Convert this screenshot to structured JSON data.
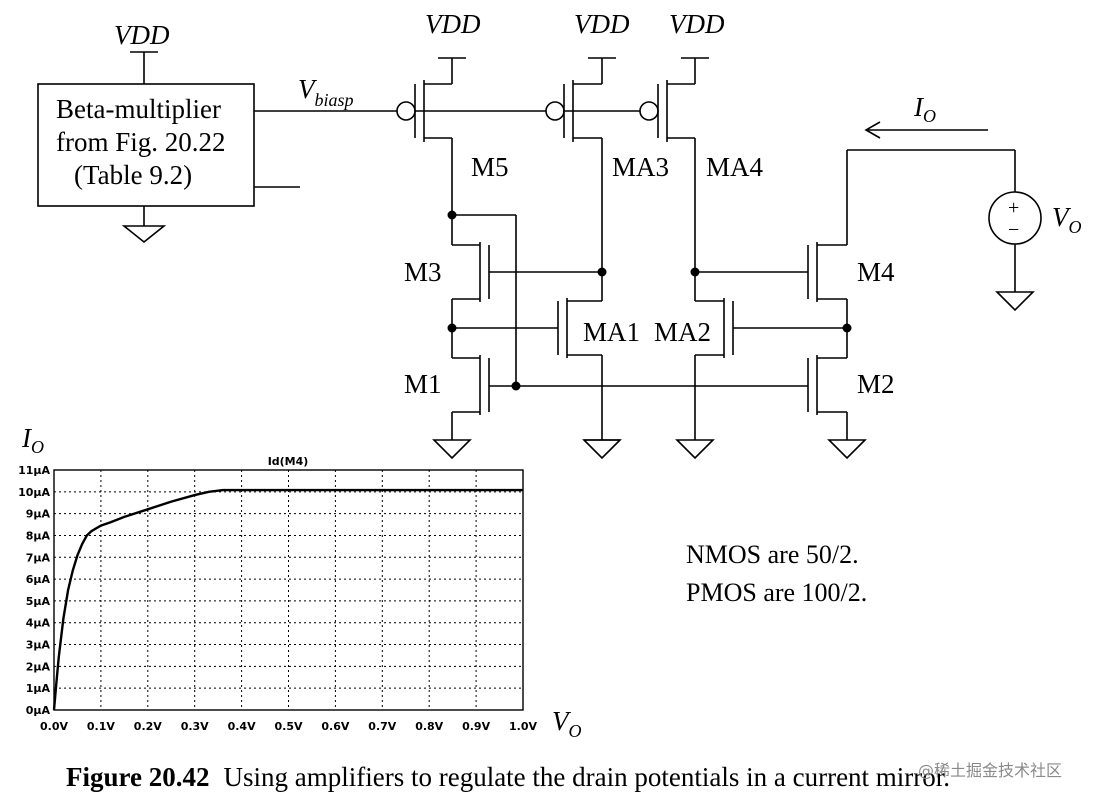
{
  "schematic": {
    "vdd": "VDD",
    "beta_multiplier": [
      "Beta-multiplier",
      "from Fig. 20.22",
      "(Table 9.2)"
    ],
    "vbiasp": {
      "main": "V",
      "sub": "biasp"
    },
    "transistors": {
      "m5": "M5",
      "ma3": "MA3",
      "ma4": "MA4",
      "m3": "M3",
      "m4": "M4",
      "ma1": "MA1",
      "ma2": "MA2",
      "m1": "M1",
      "m2": "M2"
    },
    "io": {
      "main": "I",
      "sub": "O"
    },
    "vo": {
      "main": "V",
      "sub": "O"
    },
    "source_plus": "+",
    "source_minus": "−"
  },
  "notes": {
    "nmos": "NMOS are 50/2.",
    "pmos": "PMOS are 100/2."
  },
  "caption": {
    "number": "Figure 20.42",
    "text": "Using amplifiers to regulate the drain potentials in a current mirror."
  },
  "watermark": "@稀土掘金技术社区",
  "chart_data": {
    "type": "line",
    "title": "Id(M4)",
    "ylabel": {
      "main": "I",
      "sub": "O"
    },
    "xlabel": {
      "main": "V",
      "sub": "O"
    },
    "xlim": [
      0,
      1.0
    ],
    "ylim": [
      0,
      11
    ],
    "x_ticks": [
      "0.0V",
      "0.1V",
      "0.2V",
      "0.3V",
      "0.4V",
      "0.5V",
      "0.6V",
      "0.7V",
      "0.8V",
      "0.9V",
      "1.0V"
    ],
    "y_ticks": [
      "0µA",
      "1µA",
      "2µA",
      "3µA",
      "4µA",
      "5µA",
      "6µA",
      "7µA",
      "8µA",
      "9µA",
      "10µA",
      "11µA"
    ],
    "grid": true,
    "series": [
      {
        "x": [
          0,
          0.005,
          0.01,
          0.02,
          0.03,
          0.04,
          0.05,
          0.06,
          0.07,
          0.08,
          0.1,
          0.12,
          0.15,
          0.2,
          0.25,
          0.3,
          0.33,
          0.35,
          0.36,
          0.4,
          0.5,
          0.6,
          0.7,
          0.8,
          0.9,
          1.0
        ],
        "y": [
          0,
          1.2,
          2.4,
          4.2,
          5.5,
          6.4,
          7.1,
          7.6,
          8.0,
          8.2,
          8.45,
          8.6,
          8.85,
          9.2,
          9.55,
          9.85,
          10.0,
          10.05,
          10.08,
          10.08,
          10.08,
          10.08,
          10.08,
          10.08,
          10.08,
          10.08
        ]
      }
    ],
    "color": "#000000"
  }
}
